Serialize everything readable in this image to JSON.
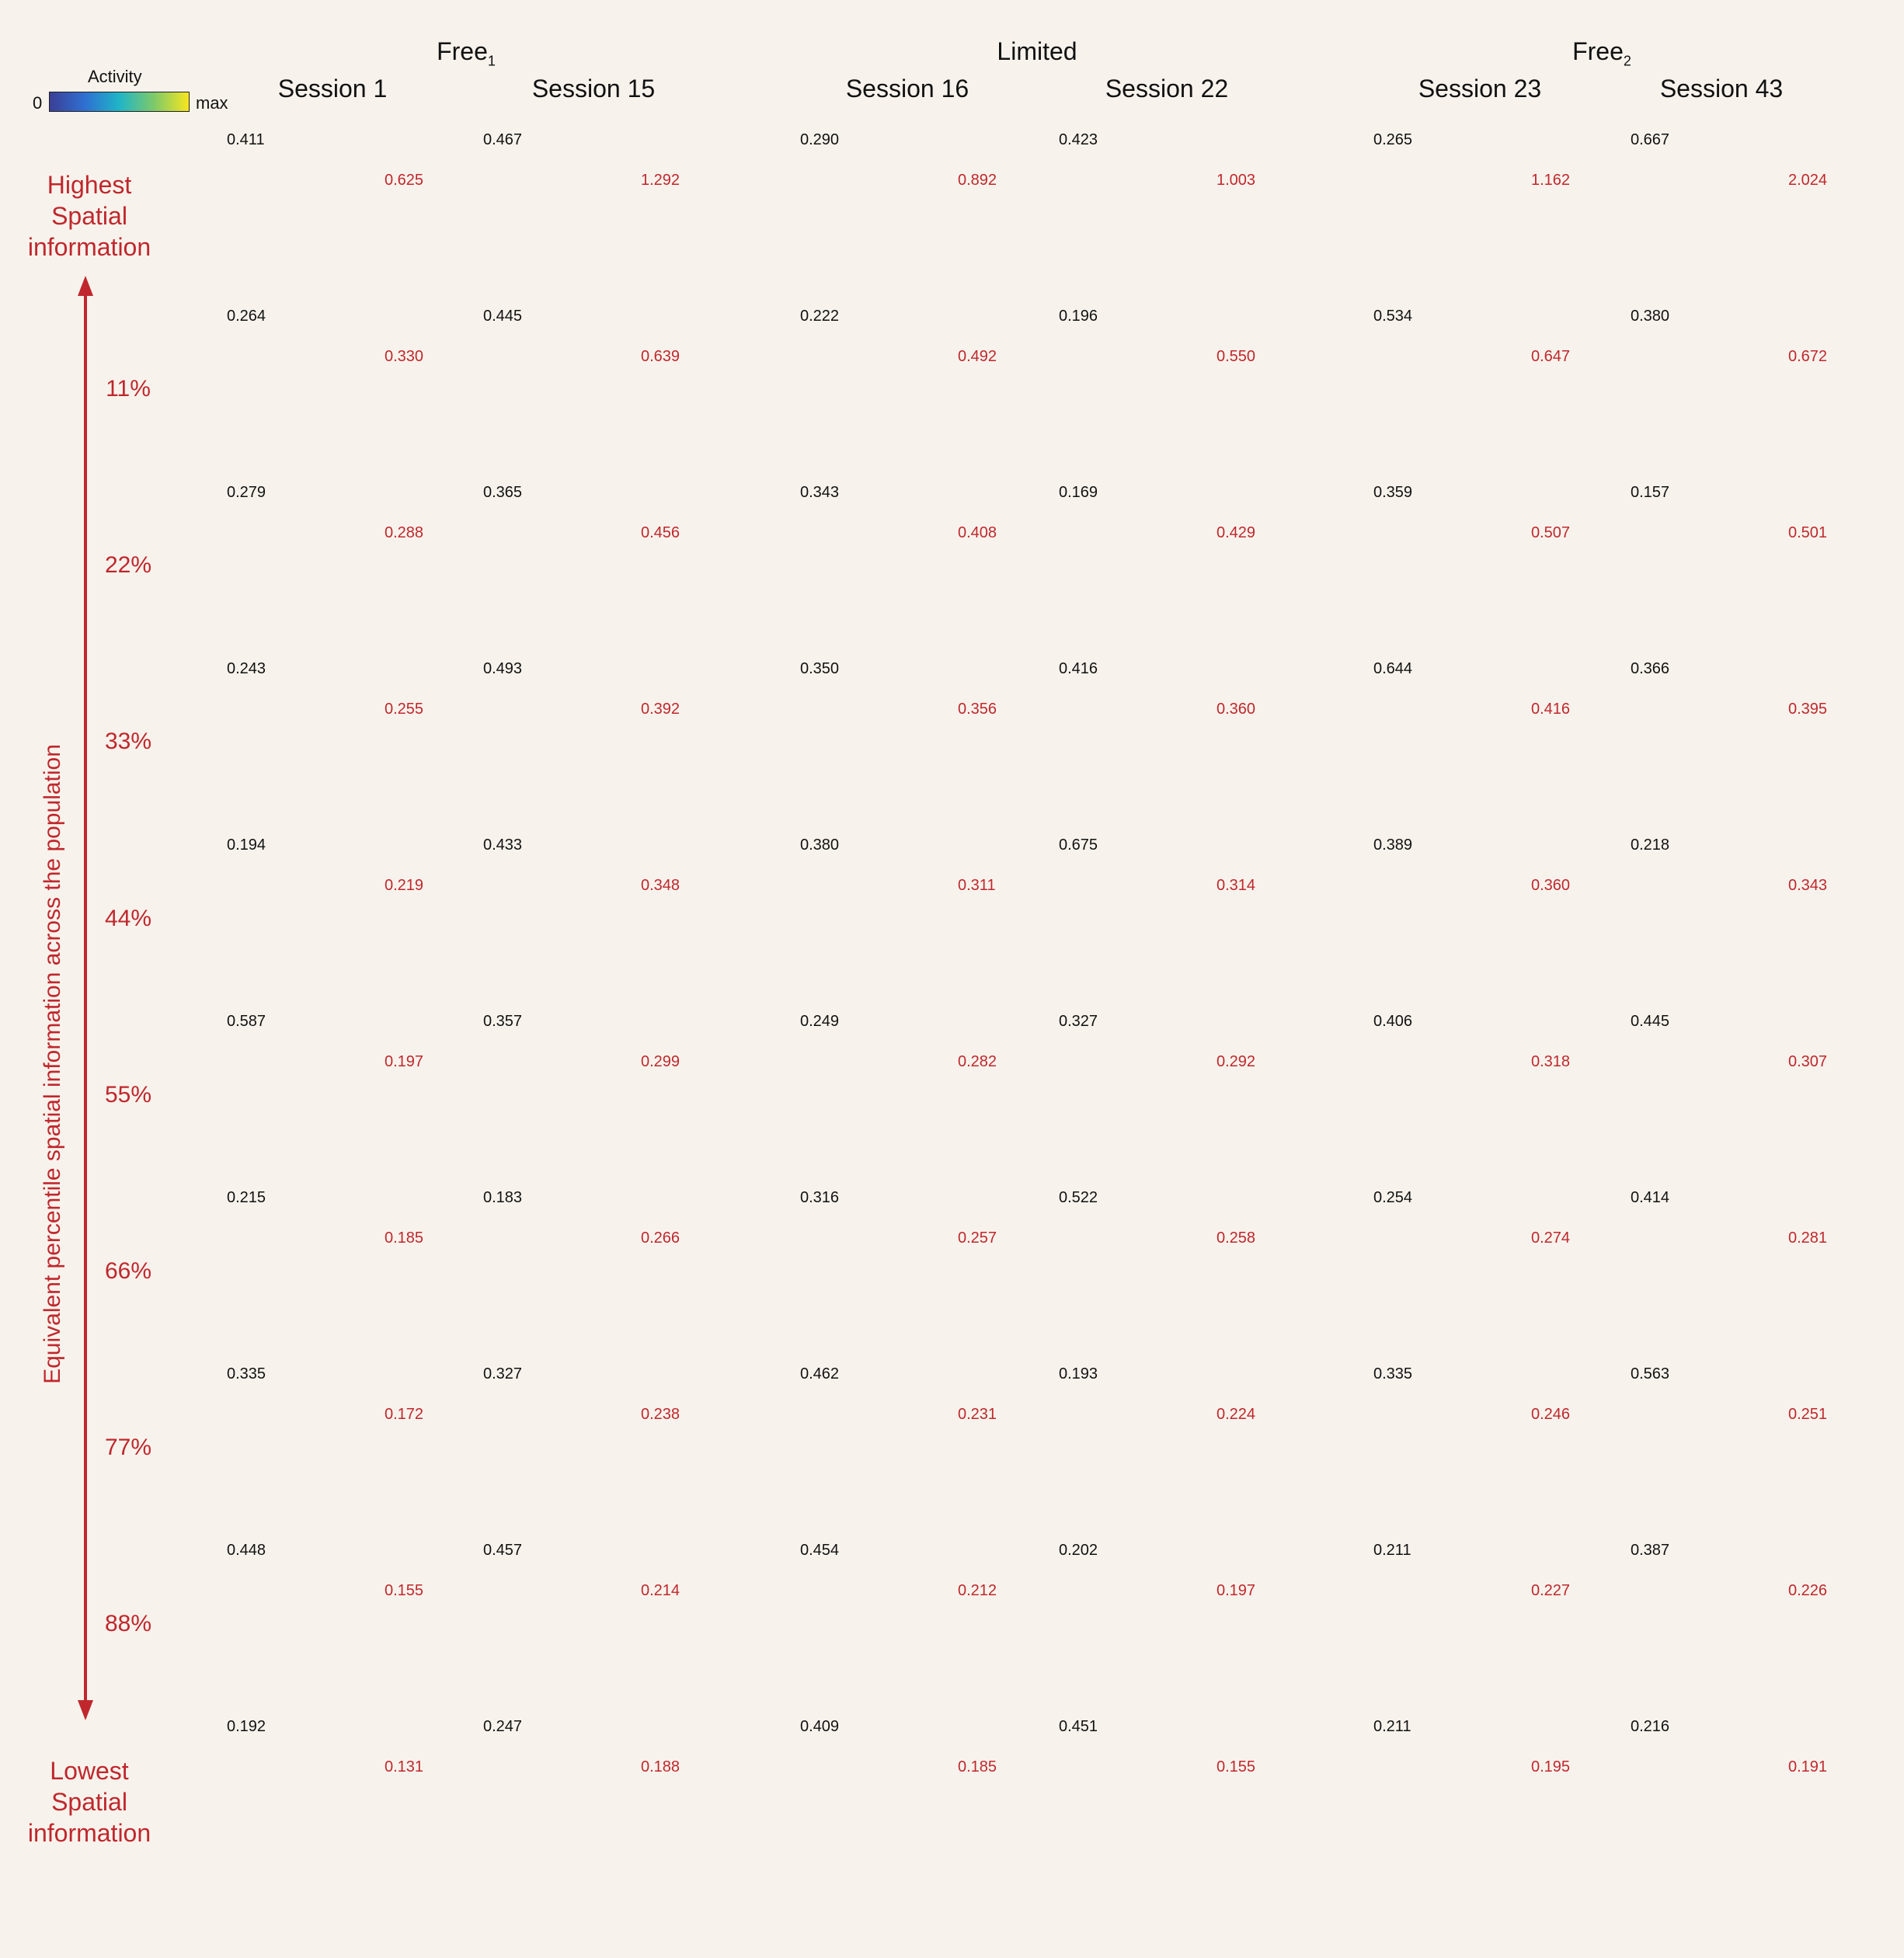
{
  "colorbar": {
    "title": "Activity",
    "min_label": "0",
    "max_label": "max",
    "colors": [
      "#3b3f96",
      "#2f6fd1",
      "#1fb5c7",
      "#7ec96a",
      "#f7e61f"
    ]
  },
  "axis": {
    "top_label": [
      "Highest",
      "Spatial",
      "information"
    ],
    "bottom_label": [
      "Lowest",
      "Spatial",
      "information"
    ],
    "vertical_label": "Equivalent percentile spatial information across the population",
    "percentiles": [
      "11%",
      "22%",
      "33%",
      "44%",
      "55%",
      "66%",
      "77%",
      "88%"
    ]
  },
  "groups": [
    {
      "name": "Free",
      "sub": "1"
    },
    {
      "name": "Limited",
      "sub": ""
    },
    {
      "name": "Free",
      "sub": "2"
    }
  ],
  "sessions": [
    {
      "label": "Session 1",
      "left": [
        "0.411",
        "0.264",
        "0.279",
        "0.243",
        "0.194",
        "0.587",
        "0.215",
        "0.335",
        "0.448",
        "0.192"
      ],
      "right": [
        "0.625",
        "0.330",
        "0.288",
        "0.255",
        "0.219",
        "0.197",
        "0.185",
        "0.172",
        "0.155",
        "0.131"
      ]
    },
    {
      "label": "Session 15",
      "left": [
        "0.467",
        "0.445",
        "0.365",
        "0.493",
        "0.433",
        "0.357",
        "0.183",
        "0.327",
        "0.457",
        "0.247"
      ],
      "right": [
        "1.292",
        "0.639",
        "0.456",
        "0.392",
        "0.348",
        "0.299",
        "0.266",
        "0.238",
        "0.214",
        "0.188"
      ]
    },
    {
      "label": "Session 16",
      "left": [
        "0.290",
        "0.222",
        "0.343",
        "0.350",
        "0.380",
        "0.249",
        "0.316",
        "0.462",
        "0.454",
        "0.409"
      ],
      "right": [
        "0.892",
        "0.492",
        "0.408",
        "0.356",
        "0.311",
        "0.282",
        "0.257",
        "0.231",
        "0.212",
        "0.185"
      ]
    },
    {
      "label": "Session 22",
      "left": [
        "0.423",
        "0.196",
        "0.169",
        "0.416",
        "0.675",
        "0.327",
        "0.522",
        "0.193",
        "0.202",
        "0.451"
      ],
      "right": [
        "1.003",
        "0.550",
        "0.429",
        "0.360",
        "0.314",
        "0.292",
        "0.258",
        "0.224",
        "0.197",
        "0.155"
      ]
    },
    {
      "label": "Session 23",
      "left": [
        "0.265",
        "0.534",
        "0.359",
        "0.644",
        "0.389",
        "0.406",
        "0.254",
        "0.335",
        "0.211",
        "0.211"
      ],
      "right": [
        "1.162",
        "0.647",
        "0.507",
        "0.416",
        "0.360",
        "0.318",
        "0.274",
        "0.246",
        "0.227",
        "0.195"
      ]
    },
    {
      "label": "Session 43",
      "left": [
        "0.667",
        "0.380",
        "0.157",
        "0.366",
        "0.218",
        "0.445",
        "0.414",
        "0.563",
        "0.387",
        "0.216"
      ],
      "right": [
        "2.024",
        "0.672",
        "0.501",
        "0.395",
        "0.343",
        "0.307",
        "0.281",
        "0.251",
        "0.226",
        "0.191"
      ]
    }
  ]
}
